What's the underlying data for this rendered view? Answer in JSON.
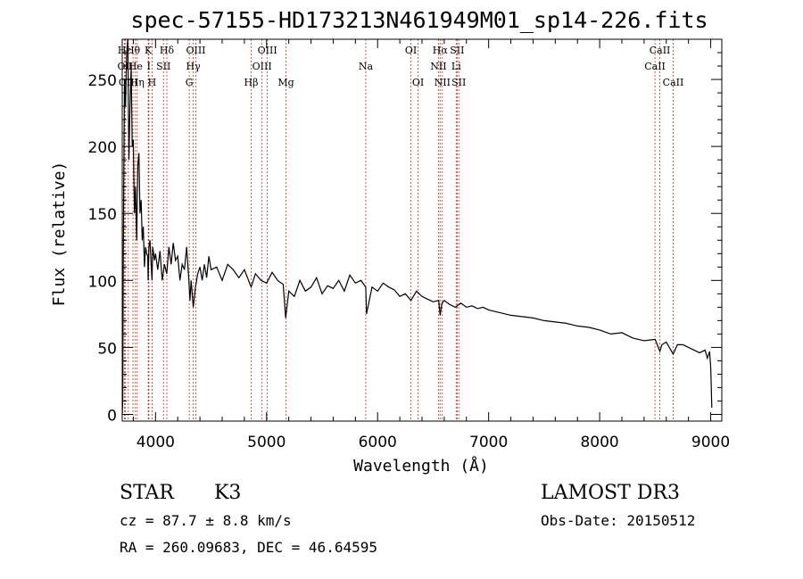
{
  "chart_data": {
    "type": "line",
    "title": "spec-57155-HD173213N461949M01_sp14-226.fits",
    "xlabel": "Wavelength (Å)",
    "ylabel": "Flux (relative)",
    "xlim": [
      3700,
      9100
    ],
    "ylim": [
      -5,
      280
    ],
    "xticks": [
      4000,
      5000,
      6000,
      7000,
      8000,
      9000
    ],
    "yticks": [
      0,
      50,
      100,
      150,
      200,
      250
    ],
    "series": [
      {
        "name": "flux",
        "x": [
          3700,
          3705,
          3710,
          3720,
          3730,
          3740,
          3750,
          3760,
          3770,
          3780,
          3790,
          3800,
          3810,
          3820,
          3830,
          3840,
          3850,
          3860,
          3870,
          3880,
          3890,
          3900,
          3910,
          3920,
          3930,
          3933,
          3940,
          3950,
          3960,
          3968,
          3975,
          3990,
          4000,
          4020,
          4040,
          4060,
          4080,
          4101,
          4120,
          4140,
          4160,
          4180,
          4200,
          4220,
          4240,
          4260,
          4280,
          4300,
          4310,
          4320,
          4340,
          4360,
          4380,
          4400,
          4420,
          4440,
          4460,
          4480,
          4500,
          4550,
          4600,
          4650,
          4700,
          4750,
          4800,
          4861,
          4900,
          4950,
          5000,
          5050,
          5100,
          5150,
          5172,
          5183,
          5200,
          5250,
          5300,
          5350,
          5400,
          5450,
          5500,
          5550,
          5600,
          5650,
          5700,
          5750,
          5800,
          5850,
          5893,
          5900,
          5950,
          6000,
          6050,
          6100,
          6150,
          6200,
          6250,
          6300,
          6350,
          6400,
          6450,
          6500,
          6550,
          6563,
          6580,
          6600,
          6650,
          6700,
          6750,
          6800,
          6850,
          6900,
          6950,
          7000,
          7100,
          7200,
          7300,
          7400,
          7500,
          7600,
          7700,
          7800,
          7900,
          8000,
          8100,
          8200,
          8300,
          8400,
          8500,
          8542,
          8560,
          8600,
          8662,
          8700,
          8750,
          8800,
          8850,
          8900,
          8950,
          8970,
          8990,
          9000,
          9010
        ],
        "values": [
          0,
          10,
          120,
          250,
          230,
          270,
          280,
          190,
          230,
          260,
          200,
          205,
          150,
          170,
          130,
          185,
          195,
          150,
          160,
          130,
          140,
          110,
          125,
          120,
          118,
          100,
          125,
          130,
          112,
          100,
          125,
          115,
          120,
          108,
          122,
          100,
          112,
          105,
          125,
          112,
          128,
          115,
          118,
          100,
          112,
          108,
          125,
          100,
          85,
          100,
          80,
          95,
          105,
          110,
          100,
          112,
          102,
          118,
          108,
          110,
          100,
          112,
          108,
          102,
          108,
          95,
          105,
          100,
          98,
          106,
          100,
          97,
          72,
          80,
          92,
          88,
          100,
          92,
          95,
          102,
          90,
          96,
          94,
          100,
          92,
          104,
          98,
          100,
          95,
          75,
          95,
          92,
          98,
          95,
          93,
          88,
          90,
          85,
          92,
          88,
          86,
          84,
          85,
          74,
          83,
          85,
          82,
          80,
          83,
          80,
          81,
          79,
          80,
          78,
          76,
          74,
          73,
          72,
          70,
          69,
          68,
          66,
          65,
          63,
          60,
          61,
          57,
          55,
          56,
          47,
          52,
          54,
          45,
          52,
          52,
          50,
          48,
          46,
          48,
          42,
          47,
          35,
          5
        ]
      }
    ],
    "lines": [
      {
        "label": "Hε",
        "x": 3720,
        "row": 0
      },
      {
        "label": "OII",
        "x": 3727,
        "row": 1
      },
      {
        "label": "OIII",
        "x": 3755,
        "row": 2
      },
      {
        "label": "Hθ",
        "x": 3797,
        "row": 0
      },
      {
        "label": "He",
        "x": 3819,
        "row": 1
      },
      {
        "label": "Hη",
        "x": 3835,
        "row": 2
      },
      {
        "label": "K",
        "x": 3934,
        "row": 0
      },
      {
        "label": "I",
        "x": 3940,
        "row": 1
      },
      {
        "label": "SII",
        "x": 4072,
        "row": 1
      },
      {
        "label": "H",
        "x": 3969,
        "row": 2
      },
      {
        "label": "Hδ",
        "x": 4102,
        "row": 0
      },
      {
        "label": "OIII",
        "x": 4363,
        "row": 0
      },
      {
        "label": "Hγ",
        "x": 4340,
        "row": 1
      },
      {
        "label": "G",
        "x": 4304,
        "row": 2
      },
      {
        "label": "Hβ",
        "x": 4861,
        "row": 2
      },
      {
        "label": "OIII",
        "x": 5007,
        "row": 0
      },
      {
        "label": "OIII",
        "x": 4959,
        "row": 1
      },
      {
        "label": "Mg",
        "x": 5175,
        "row": 2
      },
      {
        "label": "Na",
        "x": 5893,
        "row": 1
      },
      {
        "label": "OI",
        "x": 6300,
        "row": 0
      },
      {
        "label": "OI",
        "x": 6364,
        "row": 2
      },
      {
        "label": "Hα",
        "x": 6563,
        "row": 0
      },
      {
        "label": "SII",
        "x": 6716,
        "row": 0
      },
      {
        "label": "NII",
        "x": 6548,
        "row": 1
      },
      {
        "label": "Li",
        "x": 6708,
        "row": 1
      },
      {
        "label": "NII",
        "x": 6583,
        "row": 2
      },
      {
        "label": "SII",
        "x": 6731,
        "row": 2
      },
      {
        "label": "CaII",
        "x": 8498,
        "row": 1
      },
      {
        "label": "CaII",
        "x": 8542,
        "row": 0
      },
      {
        "label": "CaII",
        "x": 8662,
        "row": 2
      }
    ]
  },
  "info": {
    "object_class": "STAR",
    "subclass": "K3",
    "survey": "LAMOST DR3",
    "cz": "cz = 87.7 ± 8.8 km/s",
    "obs_date": "Obs-Date: 20150512",
    "coords": "RA = 260.09683, DEC =  46.64595"
  }
}
